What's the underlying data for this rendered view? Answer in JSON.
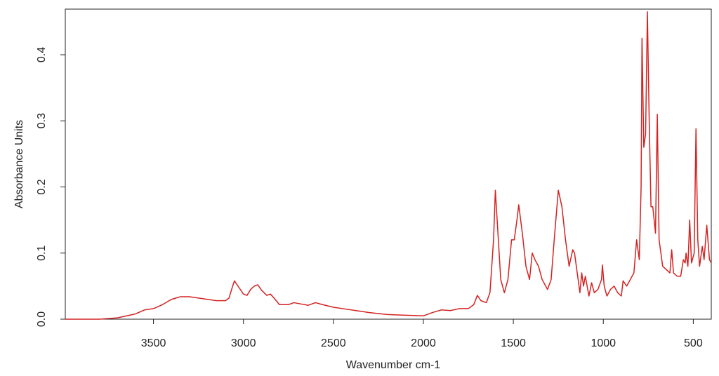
{
  "chart_data": {
    "type": "line",
    "xlabel": "Wavenumber cm-1",
    "ylabel": "Absorbance Units",
    "x": [
      3990,
      3800,
      3700,
      3600,
      3550,
      3500,
      3450,
      3400,
      3350,
      3300,
      3250,
      3200,
      3150,
      3100,
      3080,
      3060,
      3050,
      3030,
      3000,
      2980,
      2960,
      2940,
      2920,
      2900,
      2870,
      2850,
      2830,
      2800,
      2750,
      2720,
      2680,
      2640,
      2600,
      2560,
      2500,
      2400,
      2300,
      2200,
      2100,
      2000,
      1950,
      1900,
      1850,
      1800,
      1750,
      1720,
      1700,
      1680,
      1650,
      1630,
      1610,
      1600,
      1590,
      1570,
      1550,
      1530,
      1510,
      1495,
      1480,
      1470,
      1450,
      1430,
      1410,
      1395,
      1380,
      1360,
      1340,
      1310,
      1290,
      1270,
      1250,
      1230,
      1210,
      1190,
      1170,
      1160,
      1140,
      1130,
      1120,
      1110,
      1100,
      1080,
      1065,
      1050,
      1030,
      1010,
      1005,
      995,
      980,
      960,
      940,
      920,
      900,
      890,
      870,
      850,
      830,
      815,
      800,
      790,
      785,
      775,
      765,
      755,
      745,
      735,
      725,
      710,
      700,
      690,
      670,
      650,
      630,
      620,
      610,
      590,
      570,
      555,
      545,
      540,
      530,
      520,
      510,
      495,
      485,
      475,
      465,
      450,
      440,
      425,
      410,
      400
    ],
    "values": [
      0,
      0,
      0.002,
      0.008,
      0.014,
      0.016,
      0.022,
      0.03,
      0.034,
      0.034,
      0.032,
      0.03,
      0.028,
      0.028,
      0.032,
      0.05,
      0.058,
      0.05,
      0.038,
      0.036,
      0.045,
      0.05,
      0.052,
      0.044,
      0.036,
      0.038,
      0.032,
      0.022,
      0.022,
      0.025,
      0.023,
      0.021,
      0.025,
      0.022,
      0.018,
      0.014,
      0.01,
      0.007,
      0.006,
      0.005,
      0.01,
      0.014,
      0.013,
      0.016,
      0.016,
      0.022,
      0.036,
      0.028,
      0.025,
      0.04,
      0.12,
      0.195,
      0.15,
      0.06,
      0.04,
      0.06,
      0.12,
      0.12,
      0.15,
      0.173,
      0.13,
      0.08,
      0.06,
      0.1,
      0.09,
      0.08,
      0.06,
      0.045,
      0.06,
      0.13,
      0.195,
      0.17,
      0.12,
      0.08,
      0.105,
      0.1,
      0.06,
      0.04,
      0.07,
      0.05,
      0.065,
      0.035,
      0.055,
      0.04,
      0.045,
      0.06,
      0.082,
      0.05,
      0.035,
      0.045,
      0.05,
      0.04,
      0.035,
      0.058,
      0.05,
      0.06,
      0.07,
      0.12,
      0.09,
      0.2,
      0.425,
      0.26,
      0.28,
      0.465,
      0.3,
      0.17,
      0.17,
      0.13,
      0.31,
      0.12,
      0.08,
      0.075,
      0.07,
      0.105,
      0.07,
      0.065,
      0.065,
      0.09,
      0.085,
      0.1,
      0.08,
      0.15,
      0.085,
      0.1,
      0.288,
      0.12,
      0.08,
      0.11,
      0.09,
      0.142,
      0.09,
      0.085
    ],
    "color": "#d42222",
    "xlim": [
      3990,
      400
    ],
    "xticks": [
      3500,
      3000,
      2500,
      2000,
      1500,
      1000,
      500
    ],
    "ylim": [
      0,
      0.469
    ],
    "yticks": [
      {
        "value": 0,
        "label": "0.0"
      },
      0.1,
      0.2,
      0.3,
      0.4
    ]
  }
}
